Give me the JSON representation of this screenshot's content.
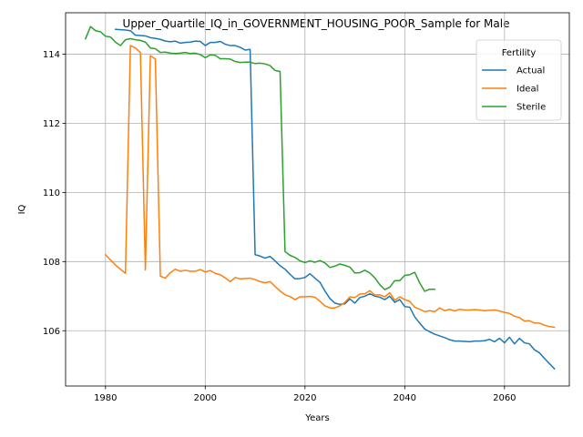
{
  "chart_data": {
    "type": "line",
    "title": "Upper_Quartile_IQ_in_GOVERNMENT_HOUSING_POOR_Sample for Male",
    "xlabel": "Years",
    "ylabel": "IQ",
    "xlim": [
      1972,
      2073
    ],
    "ylim": [
      104.4,
      115.2
    ],
    "xticks": [
      1980,
      2000,
      2020,
      2040,
      2060
    ],
    "yticks": [
      106,
      108,
      110,
      112,
      114
    ],
    "grid": true,
    "legend": {
      "title": "Fertility",
      "placement": "top-right"
    },
    "series": [
      {
        "name": "Actual",
        "color": "#1f77b4",
        "points": [
          [
            1982,
            114.72
          ],
          [
            1983,
            114.71
          ],
          [
            1984,
            114.7
          ],
          [
            1985,
            114.68
          ],
          [
            1986,
            114.55
          ],
          [
            1987,
            114.54
          ],
          [
            1988,
            114.53
          ],
          [
            1989,
            114.48
          ],
          [
            1990,
            114.46
          ],
          [
            1991,
            114.43
          ],
          [
            1992,
            114.38
          ],
          [
            1993,
            114.36
          ],
          [
            1994,
            114.38
          ],
          [
            1995,
            114.32
          ],
          [
            1996,
            114.34
          ],
          [
            1997,
            114.35
          ],
          [
            1998,
            114.38
          ],
          [
            1999,
            114.37
          ],
          [
            2000,
            114.25
          ],
          [
            2001,
            114.34
          ],
          [
            2002,
            114.34
          ],
          [
            2003,
            114.37
          ],
          [
            2004,
            114.29
          ],
          [
            2005,
            114.25
          ],
          [
            2006,
            114.25
          ],
          [
            2007,
            114.2
          ],
          [
            2008,
            114.12
          ],
          [
            2009,
            114.14
          ],
          [
            2010,
            108.2
          ],
          [
            2011,
            108.16
          ],
          [
            2012,
            108.1
          ],
          [
            2013,
            108.15
          ],
          [
            2014,
            108.02
          ],
          [
            2015,
            107.88
          ],
          [
            2016,
            107.78
          ],
          [
            2017,
            107.63
          ],
          [
            2018,
            107.5
          ],
          [
            2019,
            107.51
          ],
          [
            2020,
            107.54
          ],
          [
            2021,
            107.65
          ],
          [
            2022,
            107.52
          ],
          [
            2023,
            107.4
          ],
          [
            2024,
            107.15
          ],
          [
            2025,
            106.93
          ],
          [
            2026,
            106.8
          ],
          [
            2027,
            106.76
          ],
          [
            2028,
            106.78
          ],
          [
            2029,
            106.92
          ],
          [
            2030,
            106.8
          ],
          [
            2031,
            106.96
          ],
          [
            2032,
            107.0
          ],
          [
            2033,
            107.07
          ],
          [
            2034,
            107.0
          ],
          [
            2035,
            106.97
          ],
          [
            2036,
            106.9
          ],
          [
            2037,
            107.0
          ],
          [
            2038,
            106.82
          ],
          [
            2039,
            106.9
          ],
          [
            2040,
            106.7
          ],
          [
            2041,
            106.68
          ],
          [
            2042,
            106.4
          ],
          [
            2043,
            106.22
          ],
          [
            2044,
            106.05
          ],
          [
            2045,
            105.97
          ],
          [
            2046,
            105.9
          ],
          [
            2047,
            105.85
          ],
          [
            2048,
            105.8
          ],
          [
            2049,
            105.74
          ],
          [
            2050,
            105.7
          ],
          [
            2051,
            105.7
          ],
          [
            2052,
            105.69
          ],
          [
            2053,
            105.68
          ],
          [
            2054,
            105.7
          ],
          [
            2055,
            105.7
          ],
          [
            2056,
            105.71
          ],
          [
            2057,
            105.75
          ],
          [
            2058,
            105.68
          ],
          [
            2059,
            105.78
          ],
          [
            2060,
            105.65
          ],
          [
            2061,
            105.81
          ],
          [
            2062,
            105.62
          ],
          [
            2063,
            105.78
          ],
          [
            2064,
            105.65
          ],
          [
            2065,
            105.62
          ],
          [
            2066,
            105.45
          ],
          [
            2067,
            105.36
          ],
          [
            2068,
            105.2
          ],
          [
            2069,
            105.05
          ],
          [
            2070,
            104.9
          ]
        ]
      },
      {
        "name": "Ideal",
        "color": "#ff7f0e",
        "points": [
          [
            1980,
            108.2
          ],
          [
            1981,
            108.05
          ],
          [
            1982,
            107.9
          ],
          [
            1983,
            107.78
          ],
          [
            1984,
            107.66
          ],
          [
            1985,
            114.25
          ],
          [
            1986,
            114.18
          ],
          [
            1987,
            114.05
          ],
          [
            1988,
            107.76
          ],
          [
            1989,
            113.96
          ],
          [
            1990,
            113.86
          ],
          [
            1991,
            107.58
          ],
          [
            1992,
            107.52
          ],
          [
            1993,
            107.68
          ],
          [
            1994,
            107.78
          ],
          [
            1995,
            107.72
          ],
          [
            1996,
            107.75
          ],
          [
            1997,
            107.72
          ],
          [
            1998,
            107.72
          ],
          [
            1999,
            107.77
          ],
          [
            2000,
            107.7
          ],
          [
            2001,
            107.74
          ],
          [
            2002,
            107.66
          ],
          [
            2003,
            107.62
          ],
          [
            2004,
            107.53
          ],
          [
            2005,
            107.42
          ],
          [
            2006,
            107.54
          ],
          [
            2007,
            107.5
          ],
          [
            2008,
            107.51
          ],
          [
            2009,
            107.52
          ],
          [
            2010,
            107.48
          ],
          [
            2011,
            107.42
          ],
          [
            2012,
            107.39
          ],
          [
            2013,
            107.42
          ],
          [
            2014,
            107.28
          ],
          [
            2015,
            107.15
          ],
          [
            2016,
            107.04
          ],
          [
            2017,
            106.99
          ],
          [
            2018,
            106.9
          ],
          [
            2019,
            106.98
          ],
          [
            2020,
            106.98
          ],
          [
            2021,
            106.99
          ],
          [
            2022,
            106.97
          ],
          [
            2023,
            106.85
          ],
          [
            2024,
            106.72
          ],
          [
            2025,
            106.66
          ],
          [
            2026,
            106.66
          ],
          [
            2027,
            106.72
          ],
          [
            2028,
            106.82
          ],
          [
            2029,
            106.98
          ],
          [
            2030,
            106.96
          ],
          [
            2031,
            107.06
          ],
          [
            2032,
            107.07
          ],
          [
            2033,
            107.16
          ],
          [
            2034,
            107.03
          ],
          [
            2035,
            107.04
          ],
          [
            2036,
            106.98
          ],
          [
            2037,
            107.1
          ],
          [
            2038,
            106.88
          ],
          [
            2039,
            106.98
          ],
          [
            2040,
            106.9
          ],
          [
            2041,
            106.85
          ],
          [
            2042,
            106.68
          ],
          [
            2043,
            106.62
          ],
          [
            2044,
            106.55
          ],
          [
            2045,
            106.58
          ],
          [
            2046,
            106.55
          ],
          [
            2047,
            106.66
          ],
          [
            2048,
            106.58
          ],
          [
            2049,
            106.62
          ],
          [
            2050,
            106.57
          ],
          [
            2051,
            106.62
          ],
          [
            2052,
            106.6
          ],
          [
            2053,
            106.6
          ],
          [
            2054,
            106.61
          ],
          [
            2055,
            106.6
          ],
          [
            2056,
            106.58
          ],
          [
            2057,
            106.59
          ],
          [
            2058,
            106.6
          ],
          [
            2059,
            106.57
          ],
          [
            2060,
            106.53
          ],
          [
            2061,
            106.5
          ],
          [
            2062,
            106.42
          ],
          [
            2063,
            106.38
          ],
          [
            2064,
            106.28
          ],
          [
            2065,
            106.29
          ],
          [
            2066,
            106.22
          ],
          [
            2067,
            106.22
          ],
          [
            2068,
            106.16
          ],
          [
            2069,
            106.12
          ],
          [
            2070,
            106.1
          ]
        ]
      },
      {
        "name": "Sterile",
        "color": "#2ca02c",
        "points": [
          [
            1976,
            114.45
          ],
          [
            1977,
            114.8
          ],
          [
            1978,
            114.68
          ],
          [
            1979,
            114.65
          ],
          [
            1980,
            114.52
          ],
          [
            1981,
            114.5
          ],
          [
            1982,
            114.35
          ],
          [
            1983,
            114.25
          ],
          [
            1984,
            114.42
          ],
          [
            1985,
            114.45
          ],
          [
            1986,
            114.42
          ],
          [
            1987,
            114.4
          ],
          [
            1988,
            114.35
          ],
          [
            1989,
            114.18
          ],
          [
            1990,
            114.16
          ],
          [
            1991,
            114.05
          ],
          [
            1992,
            114.06
          ],
          [
            1993,
            114.03
          ],
          [
            1994,
            114.02
          ],
          [
            1995,
            114.03
          ],
          [
            1996,
            114.05
          ],
          [
            1997,
            114.02
          ],
          [
            1998,
            114.03
          ],
          [
            1999,
            113.99
          ],
          [
            2000,
            113.9
          ],
          [
            2001,
            113.98
          ],
          [
            2002,
            113.97
          ],
          [
            2003,
            113.87
          ],
          [
            2004,
            113.87
          ],
          [
            2005,
            113.86
          ],
          [
            2006,
            113.79
          ],
          [
            2007,
            113.76
          ],
          [
            2008,
            113.77
          ],
          [
            2009,
            113.77
          ],
          [
            2010,
            113.73
          ],
          [
            2011,
            113.74
          ],
          [
            2012,
            113.72
          ],
          [
            2013,
            113.67
          ],
          [
            2014,
            113.53
          ],
          [
            2015,
            113.5
          ],
          [
            2016,
            108.29
          ],
          [
            2017,
            108.18
          ],
          [
            2018,
            108.12
          ],
          [
            2019,
            108.02
          ],
          [
            2020,
            107.97
          ],
          [
            2021,
            108.02
          ],
          [
            2022,
            107.98
          ],
          [
            2023,
            108.03
          ],
          [
            2024,
            107.96
          ],
          [
            2025,
            107.83
          ],
          [
            2026,
            107.87
          ],
          [
            2027,
            107.93
          ],
          [
            2028,
            107.89
          ],
          [
            2029,
            107.84
          ],
          [
            2030,
            107.67
          ],
          [
            2031,
            107.68
          ],
          [
            2032,
            107.75
          ],
          [
            2033,
            107.67
          ],
          [
            2034,
            107.53
          ],
          [
            2035,
            107.33
          ],
          [
            2036,
            107.19
          ],
          [
            2037,
            107.26
          ],
          [
            2038,
            107.45
          ],
          [
            2039,
            107.45
          ],
          [
            2040,
            107.6
          ],
          [
            2041,
            107.62
          ],
          [
            2042,
            107.69
          ],
          [
            2043,
            107.38
          ],
          [
            2044,
            107.14
          ],
          [
            2045,
            107.2
          ],
          [
            2046,
            107.2
          ]
        ]
      }
    ]
  }
}
